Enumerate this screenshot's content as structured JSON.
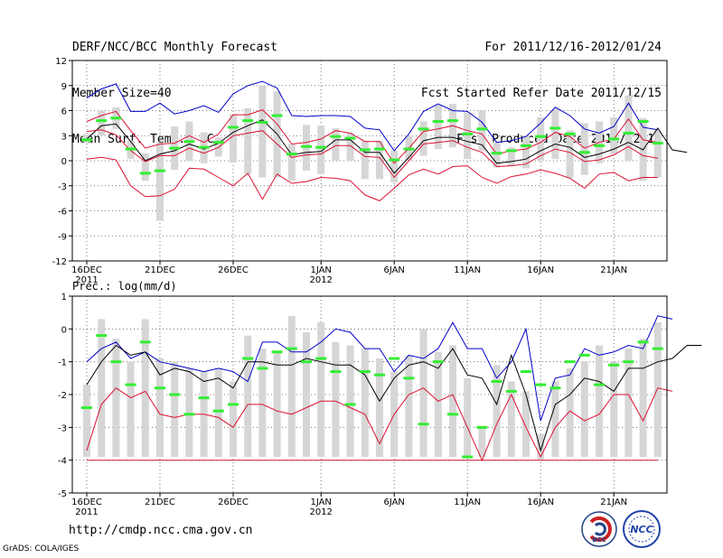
{
  "header": {
    "left": [
      "DERF/NCC/BCC Monthly Forecast",
      "Member Size=40",
      "Mean Surf. Temp.: °C"
    ],
    "right": [
      "For 2011/12/16-2012/01/24",
      "Fcst Started Refer Date 2011/12/15",
      "Fcst Produced Date 2011/12/16"
    ]
  },
  "footer": {
    "url": "http://cmdp.ncc.cma.gov.cn",
    "credit": "GrADS: COLA/IGES"
  },
  "logos": {
    "bcc": "BCC",
    "ncc": "NCC"
  },
  "colors": {
    "max": "#0000cc",
    "mean": "#000000",
    "min": "#dd1133",
    "box": "#d6d6d6",
    "ensemble": "#33ee33",
    "grid": "#555555"
  },
  "chart_data": [
    {
      "type": "line",
      "title": "Mean Surf. Temp.: °C",
      "ylim": [
        -12,
        12
      ],
      "yticks": [
        12,
        9,
        6,
        3,
        0,
        -3,
        -6,
        -9,
        -12
      ],
      "ytick_labels": [
        "12",
        "9",
        "6",
        "3",
        "0",
        "-3",
        "-6",
        "-9",
        "-12"
      ],
      "x_day_range": [
        0,
        39
      ],
      "xtick_days": [
        0,
        5,
        10,
        16,
        21,
        26,
        31,
        36
      ],
      "xtick_labels": [
        "16DEC",
        "21DEC",
        "26DEC",
        "1JAN",
        "6JAN",
        "11JAN",
        "16JAN",
        "21JAN"
      ],
      "xtick_sublabels": [
        {
          "day": 0,
          "text": "2011"
        },
        {
          "day": 16,
          "text": "2012"
        }
      ],
      "series": [
        {
          "name": "max",
          "values": [
            7.5,
            8.6,
            9.2,
            5.9,
            5.9,
            6.9,
            5.6,
            6.0,
            6.6,
            5.8,
            8.0,
            9.0,
            9.5,
            8.7,
            5.4,
            5.3,
            5.4,
            5.4,
            5.3,
            3.9,
            3.7,
            1.2,
            3.2,
            5.9,
            6.8,
            6.0,
            5.9,
            4.6,
            2.2,
            2.4,
            2.9,
            4.5,
            6.4,
            5.4,
            3.8,
            3.3,
            4.1,
            6.9,
            4.0,
            3.7
          ]
        },
        {
          "name": "mean",
          "values": [
            2.6,
            4.2,
            4.4,
            2.3,
            0.0,
            0.8,
            1.2,
            2.0,
            1.4,
            2.1,
            3.4,
            4.2,
            4.9,
            3.2,
            0.7,
            1.0,
            1.1,
            2.5,
            2.5,
            1.0,
            1.0,
            -1.5,
            0.4,
            2.4,
            2.8,
            2.8,
            2.3,
            1.9,
            -0.3,
            -0.1,
            0.2,
            1.2,
            2.0,
            1.6,
            0.4,
            0.8,
            1.4,
            2.2,
            1.3,
            3.9,
            1.3,
            1.0
          ]
        },
        {
          "name": "min",
          "values": [
            0.2,
            0.4,
            0.1,
            -3.0,
            -4.3,
            -4.2,
            -3.4,
            -0.9,
            -1.0,
            -2.0,
            -3.0,
            -1.5,
            -4.6,
            -1.6,
            -2.7,
            -2.5,
            -2.0,
            -2.1,
            -2.4,
            -4.1,
            -4.8,
            -3.3,
            -1.7,
            -1.0,
            -1.6,
            -0.7,
            -0.6,
            -2.0,
            -2.7,
            -1.9,
            -1.6,
            -1.1,
            -1.5,
            -2.1,
            -3.3,
            -1.6,
            -1.4,
            -2.4,
            -2.0,
            -2.0
          ]
        },
        {
          "name": "upper_mid",
          "values": [
            4.7,
            5.4,
            5.9,
            3.6,
            1.5,
            2.0,
            2.1,
            3.0,
            2.2,
            3.2,
            5.5,
            5.5,
            6.1,
            4.4,
            2.0,
            2.2,
            2.6,
            3.6,
            3.3,
            2.3,
            2.3,
            -0.3,
            1.5,
            3.5,
            3.8,
            4.2,
            3.6,
            3.2,
            0.8,
            1.2,
            1.4,
            2.2,
            3.4,
            2.9,
            1.5,
            2.2,
            2.6,
            5.0,
            2.5,
            2.2
          ]
        },
        {
          "name": "lower_mid",
          "values": [
            3.5,
            3.7,
            3.1,
            1.2,
            -0.1,
            0.6,
            0.6,
            1.5,
            0.9,
            1.6,
            3.0,
            3.3,
            3.6,
            2.0,
            0.4,
            0.7,
            0.8,
            1.8,
            1.8,
            0.5,
            0.4,
            -2.0,
            0.0,
            2.0,
            2.2,
            2.4,
            1.6,
            1.0,
            -0.7,
            -0.6,
            -0.4,
            0.6,
            1.4,
            1.0,
            -0.1,
            0.1,
            0.7,
            1.7,
            0.6,
            0.3
          ]
        },
        {
          "name": "ensemble",
          "values": [
            2.5,
            4.8,
            5.1,
            1.4,
            -1.5,
            -1.2,
            1.5,
            2.3,
            1.6,
            2.2,
            4.0,
            4.8,
            4.6,
            5.4,
            0.8,
            1.7,
            1.6,
            2.9,
            2.7,
            1.3,
            1.4,
            0.1,
            1.4,
            3.8,
            4.7,
            4.8,
            3.2,
            3.8,
            0.9,
            1.2,
            1.8,
            2.9,
            3.9,
            3.2,
            1.0,
            1.8,
            2.6,
            3.3,
            4.7,
            2.1
          ]
        }
      ],
      "boxes": [
        [
          2.2,
          3.2
        ],
        [
          3.0,
          6.0
        ],
        [
          3.8,
          6.4
        ],
        [
          0.2,
          2.4
        ],
        [
          -2.4,
          0.9
        ],
        [
          -7.2,
          2.2
        ],
        [
          -1.1,
          4.1
        ],
        [
          0.0,
          4.7
        ],
        [
          -0.3,
          3.4
        ],
        [
          0.5,
          2.8
        ],
        [
          -0.2,
          5.6
        ],
        [
          -1.6,
          6.3
        ],
        [
          -2.0,
          9.0
        ],
        [
          -2.0,
          8.3
        ],
        [
          -2.4,
          2.0
        ],
        [
          -1.2,
          4.3
        ],
        [
          -1.6,
          4.2
        ],
        [
          0.0,
          3.9
        ],
        [
          0.0,
          3.4
        ],
        [
          -2.2,
          2.4
        ],
        [
          -2.2,
          2.4
        ],
        [
          -2.6,
          1.2
        ],
        [
          0.0,
          2.9
        ],
        [
          0.6,
          4.7
        ],
        [
          1.4,
          6.7
        ],
        [
          1.6,
          6.8
        ],
        [
          0.2,
          5.8
        ],
        [
          1.2,
          6.0
        ],
        [
          -0.8,
          2.3
        ],
        [
          -0.6,
          1.6
        ],
        [
          -0.9,
          3.0
        ],
        [
          0.0,
          5.2
        ],
        [
          0.2,
          6.2
        ],
        [
          -2.1,
          3.6
        ],
        [
          -1.7,
          4.5
        ],
        [
          -0.3,
          4.7
        ],
        [
          0.8,
          5.2
        ],
        [
          0.0,
          7.8
        ],
        [
          -2.4,
          5.1
        ],
        [
          -2.0,
          3.6
        ]
      ]
    },
    {
      "type": "line",
      "title": "Prec.: log(mm/d)",
      "ylim": [
        -5,
        1
      ],
      "yticks": [
        1,
        0,
        -1,
        -2,
        -3,
        -4,
        -5
      ],
      "ytick_labels": [
        "1",
        "0",
        "-1",
        "-2",
        "-3",
        "-4",
        "-5"
      ],
      "x_day_range": [
        0,
        39
      ],
      "xtick_days": [
        0,
        5,
        10,
        16,
        21,
        26,
        31,
        36
      ],
      "xtick_labels": [
        "16DEC",
        "21DEC",
        "26DEC",
        "1JAN",
        "6JAN",
        "11JAN",
        "16JAN",
        "21JAN"
      ],
      "xtick_sublabels": [
        {
          "day": 0,
          "text": "2011"
        },
        {
          "day": 16,
          "text": "2012"
        }
      ],
      "series": [
        {
          "name": "max",
          "values": [
            -1.0,
            -0.6,
            -0.4,
            -0.9,
            -0.7,
            -1.0,
            -1.1,
            -1.2,
            -1.3,
            -1.2,
            -1.3,
            -1.6,
            -0.4,
            -0.4,
            -0.7,
            -0.7,
            -0.4,
            0.0,
            -0.1,
            -0.6,
            -0.6,
            -1.3,
            -0.8,
            -0.9,
            -0.6,
            0.2,
            -0.6,
            -0.6,
            -1.5,
            -1.0,
            0.0,
            -2.8,
            -1.5,
            -1.4,
            -0.6,
            -0.8,
            -0.7,
            -0.5,
            -0.6,
            0.4,
            0.3
          ]
        },
        {
          "name": "mean",
          "values": [
            -1.7,
            -1.0,
            -0.5,
            -0.8,
            -0.7,
            -1.4,
            -1.2,
            -1.3,
            -1.6,
            -1.5,
            -1.8,
            -1.0,
            -1.0,
            -1.1,
            -1.1,
            -0.9,
            -1.0,
            -1.1,
            -1.1,
            -1.4,
            -2.2,
            -1.5,
            -1.1,
            -1.0,
            -1.2,
            -0.6,
            -1.4,
            -1.5,
            -2.3,
            -0.8,
            -2.0,
            -3.7,
            -2.3,
            -2.0,
            -1.5,
            -1.6,
            -1.9,
            -1.2,
            -1.2,
            -1.0,
            -0.9,
            -0.5,
            -0.5
          ]
        },
        {
          "name": "min",
          "values": [
            -3.7,
            -2.3,
            -1.8,
            -2.1,
            -1.9,
            -2.6,
            -2.7,
            -2.6,
            -2.6,
            -2.7,
            -3.0,
            -2.3,
            -2.3,
            -2.5,
            -2.6,
            -2.4,
            -2.2,
            -2.2,
            -2.4,
            -2.6,
            -3.5,
            -2.6,
            -2.0,
            -1.8,
            -2.2,
            -2.0,
            -3.0,
            -4.0,
            -2.9,
            -2.0,
            -3.0,
            -3.9,
            -3.0,
            -2.5,
            -2.8,
            -2.6,
            -2.0,
            -2.0,
            -2.8,
            -1.8,
            -1.9
          ]
        },
        {
          "name": "floor",
          "values": [
            -4.0,
            -4.0,
            -4.0,
            -4.0,
            -4.0,
            -4.0,
            -4.0,
            -4.0,
            -4.0,
            -4.0,
            -4.0,
            -4.0,
            -4.0,
            -4.0,
            -4.0,
            -4.0,
            -4.0,
            -4.0,
            -4.0,
            -4.0,
            -4.0,
            -4.0,
            -4.0,
            -4.0,
            -4.0,
            -4.0,
            -4.0,
            -4.0,
            -4.0,
            -4.0,
            -4.0,
            -4.0,
            -4.0,
            -4.0,
            -4.0,
            -4.0,
            -4.0,
            -4.0,
            -4.0,
            -4.0
          ]
        },
        {
          "name": "ensemble",
          "values": [
            -2.4,
            -0.2,
            -1.0,
            -1.7,
            -0.4,
            -1.8,
            -2.0,
            -2.6,
            -2.1,
            -2.5,
            -2.3,
            -0.9,
            -1.2,
            -0.7,
            -0.6,
            -1.0,
            -0.9,
            -1.3,
            -2.3,
            -1.3,
            -1.4,
            -0.9,
            -1.5,
            -2.9,
            -1.0,
            -2.6,
            -3.9,
            -3.0,
            -1.6,
            -1.9,
            -1.3,
            -1.7,
            -1.8,
            -1.0,
            -0.8,
            -1.7,
            -1.1,
            -1.0,
            -0.4,
            -0.6
          ]
        },
        {
          "name": "ensemble_extra",
          "values": [
            -1.1,
            -0.8,
            -1.4,
            -1.0
          ]
        }
      ],
      "boxes": [
        [
          -3.9,
          -1.7
        ],
        [
          -3.9,
          0.3
        ],
        [
          -3.9,
          -0.3
        ],
        [
          -3.9,
          -1.0
        ],
        [
          -3.9,
          0.3
        ],
        [
          -3.9,
          -0.9
        ],
        [
          -3.9,
          -1.0
        ],
        [
          -3.9,
          -1.2
        ],
        [
          -3.9,
          -1.3
        ],
        [
          -3.9,
          -1.2
        ],
        [
          -3.9,
          -1.6
        ],
        [
          -3.9,
          -0.2
        ],
        [
          -3.9,
          -0.6
        ],
        [
          -3.9,
          -0.7
        ],
        [
          -3.9,
          0.4
        ],
        [
          -3.9,
          -0.1
        ],
        [
          -3.9,
          0.2
        ],
        [
          -3.9,
          -0.4
        ],
        [
          -3.9,
          -0.5
        ],
        [
          -3.9,
          -0.6
        ],
        [
          -3.9,
          -0.9
        ],
        [
          -3.9,
          -1.3
        ],
        [
          -3.9,
          -0.8
        ],
        [
          -3.9,
          0.0
        ],
        [
          -3.9,
          -0.7
        ],
        [
          -3.9,
          -0.5
        ],
        [
          -3.9,
          -1.5
        ],
        [
          -3.9,
          -3.0
        ],
        [
          -3.9,
          -1.1
        ],
        [
          -3.9,
          -1.6
        ],
        [
          -3.9,
          -1.9
        ],
        [
          -4.0,
          -3.2
        ],
        [
          -3.9,
          -1.6
        ],
        [
          -3.9,
          -1.2
        ],
        [
          -3.9,
          -1.0
        ],
        [
          -3.9,
          -0.5
        ],
        [
          -3.9,
          -1.0
        ],
        [
          -3.9,
          -0.6
        ],
        [
          -3.9,
          -0.3
        ],
        [
          -3.9,
          0.2
        ]
      ]
    }
  ]
}
